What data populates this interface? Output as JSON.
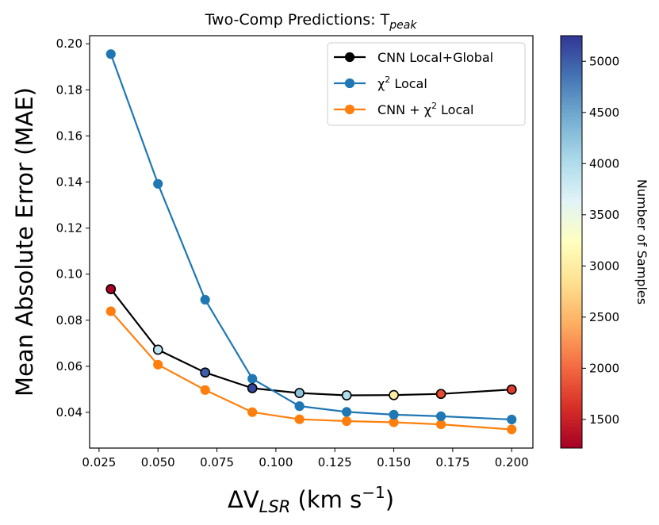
{
  "chart_data": {
    "type": "line",
    "title": "Two-Comp Predictions: T",
    "title_subscript": "peak",
    "ylabel": "Mean Absolute Error (MAE)",
    "xlabel_prefix": "ΔV",
    "xlabel_sub": "LSR",
    "xlabel_units": " (km s",
    "xlabel_exp": "−1",
    "xlabel_close": ")",
    "xlim": [
      0.021,
      0.209
    ],
    "ylim": [
      0.0245,
      0.2035
    ],
    "xticks": [
      0.025,
      0.05,
      0.075,
      0.1,
      0.125,
      0.15,
      0.175,
      0.2
    ],
    "xtick_labels": [
      "0.025",
      "0.050",
      "0.075",
      "0.100",
      "0.125",
      "0.150",
      "0.175",
      "0.200"
    ],
    "yticks": [
      0.04,
      0.06,
      0.08,
      0.1,
      0.12,
      0.14,
      0.16,
      0.18,
      0.2
    ],
    "ytick_labels": [
      "0.04",
      "0.06",
      "0.08",
      "0.10",
      "0.12",
      "0.14",
      "0.16",
      "0.18",
      "0.20"
    ],
    "x": [
      0.03,
      0.05,
      0.07,
      0.09,
      0.11,
      0.13,
      0.15,
      0.17,
      0.2
    ],
    "series": [
      {
        "name": "CNN Local+Global",
        "legend_text": "CNN Local+Global",
        "color": "#000000",
        "values": [
          0.0935,
          0.0672,
          0.0573,
          0.0505,
          0.0484,
          0.0474,
          0.0475,
          0.048,
          0.0499
        ],
        "samples": [
          1250,
          3900,
          5000,
          5150,
          4250,
          4000,
          3000,
          1800,
          1700
        ]
      },
      {
        "name": "chi2 Local",
        "legend_text": "χ",
        "legend_sup": "2",
        "legend_suffix": " Local",
        "color": "#1f77b4",
        "values": [
          0.1955,
          0.1392,
          0.0889,
          0.0546,
          0.0427,
          0.0402,
          0.039,
          0.0383,
          0.0369
        ]
      },
      {
        "name": "CNN + chi2 Local",
        "legend_text": "CNN + χ",
        "legend_sup": "2",
        "legend_suffix": " Local",
        "color": "#ff7f0e",
        "values": [
          0.0839,
          0.0607,
          0.0497,
          0.0401,
          0.037,
          0.0362,
          0.0357,
          0.0348,
          0.0326
        ]
      }
    ],
    "legend_position": "top-right",
    "colorbar": {
      "label": "Number of Samples",
      "range": [
        1220,
        5250
      ],
      "ticks": [
        1500,
        2000,
        2500,
        3000,
        3500,
        4000,
        4500,
        5000
      ],
      "tick_labels": [
        "1500",
        "2000",
        "2500",
        "3000",
        "3500",
        "4000",
        "4500",
        "5000"
      ],
      "colormap": "RdYlBu",
      "stops": [
        "#a50026",
        "#d73027",
        "#f46d43",
        "#fdae61",
        "#fee090",
        "#ffffbf",
        "#e0f3f8",
        "#abd9e9",
        "#74add1",
        "#4575b4",
        "#313695"
      ]
    }
  }
}
